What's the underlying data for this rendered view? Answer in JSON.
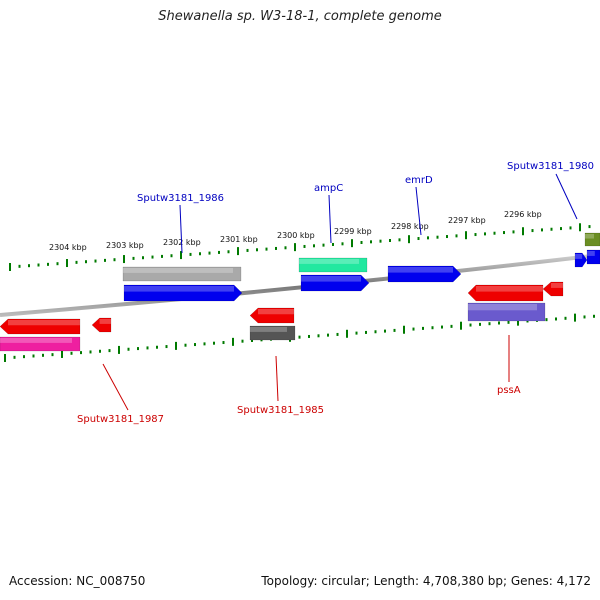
{
  "title": "Shewanella sp. W3-18-1, complete genome",
  "colors": {
    "tick": "#007a00",
    "label_forward": "#0000c0",
    "label_reverse": "#cc0000",
    "backbone": "#8a8a8a"
  },
  "scale_labels": [
    "2304 kbp",
    "2303 kbp",
    "2302 kbp",
    "2301 kbp",
    "2300 kbp",
    "2299 kbp",
    "2298 kbp",
    "2297 kbp",
    "2296 kbp"
  ],
  "gene_labels": [
    {
      "name": "Sputw3181_1986",
      "strand": "forward"
    },
    {
      "name": "ampC",
      "strand": "forward"
    },
    {
      "name": "emrD",
      "strand": "forward"
    },
    {
      "name": "Sputw3181_1980",
      "strand": "forward"
    },
    {
      "name": "Sputw3181_1987",
      "strand": "reverse"
    },
    {
      "name": "Sputw3181_1985",
      "strand": "reverse"
    },
    {
      "name": "pssA",
      "strand": "reverse"
    }
  ],
  "features": [
    {
      "strand": "forward",
      "track": "cog",
      "color": "#a9a9a9"
    },
    {
      "strand": "forward",
      "track": "cds",
      "color": "#0000ee"
    },
    {
      "strand": "forward",
      "track": "cog",
      "color": "#22e8a0"
    },
    {
      "strand": "forward",
      "track": "cds",
      "color": "#0000ee"
    },
    {
      "strand": "forward",
      "track": "cds",
      "color": "#0000ee"
    },
    {
      "strand": "forward",
      "track": "cds",
      "color": "#0000ee"
    },
    {
      "strand": "forward",
      "track": "cds",
      "color": "#0000ee"
    },
    {
      "strand": "forward",
      "track": "cog",
      "color": "#6b8e23"
    },
    {
      "strand": "reverse",
      "track": "cds",
      "color": "#ee0000"
    },
    {
      "strand": "reverse",
      "track": "cds",
      "color": "#ee0000"
    },
    {
      "strand": "reverse",
      "track": "cds",
      "color": "#ee0000"
    },
    {
      "strand": "reverse",
      "track": "cds",
      "color": "#ee0000"
    },
    {
      "strand": "reverse",
      "track": "cds",
      "color": "#ee0000"
    },
    {
      "strand": "reverse",
      "track": "cog",
      "color": "#ee1fa0"
    },
    {
      "strand": "reverse",
      "track": "cog",
      "color": "#555555"
    },
    {
      "strand": "reverse",
      "track": "cog",
      "color": "#6a5acd"
    }
  ],
  "footer": {
    "accession": "Accession: NC_008750",
    "topology": "Topology: circular; Length: 4,708,380 bp; Genes: 4,172"
  }
}
